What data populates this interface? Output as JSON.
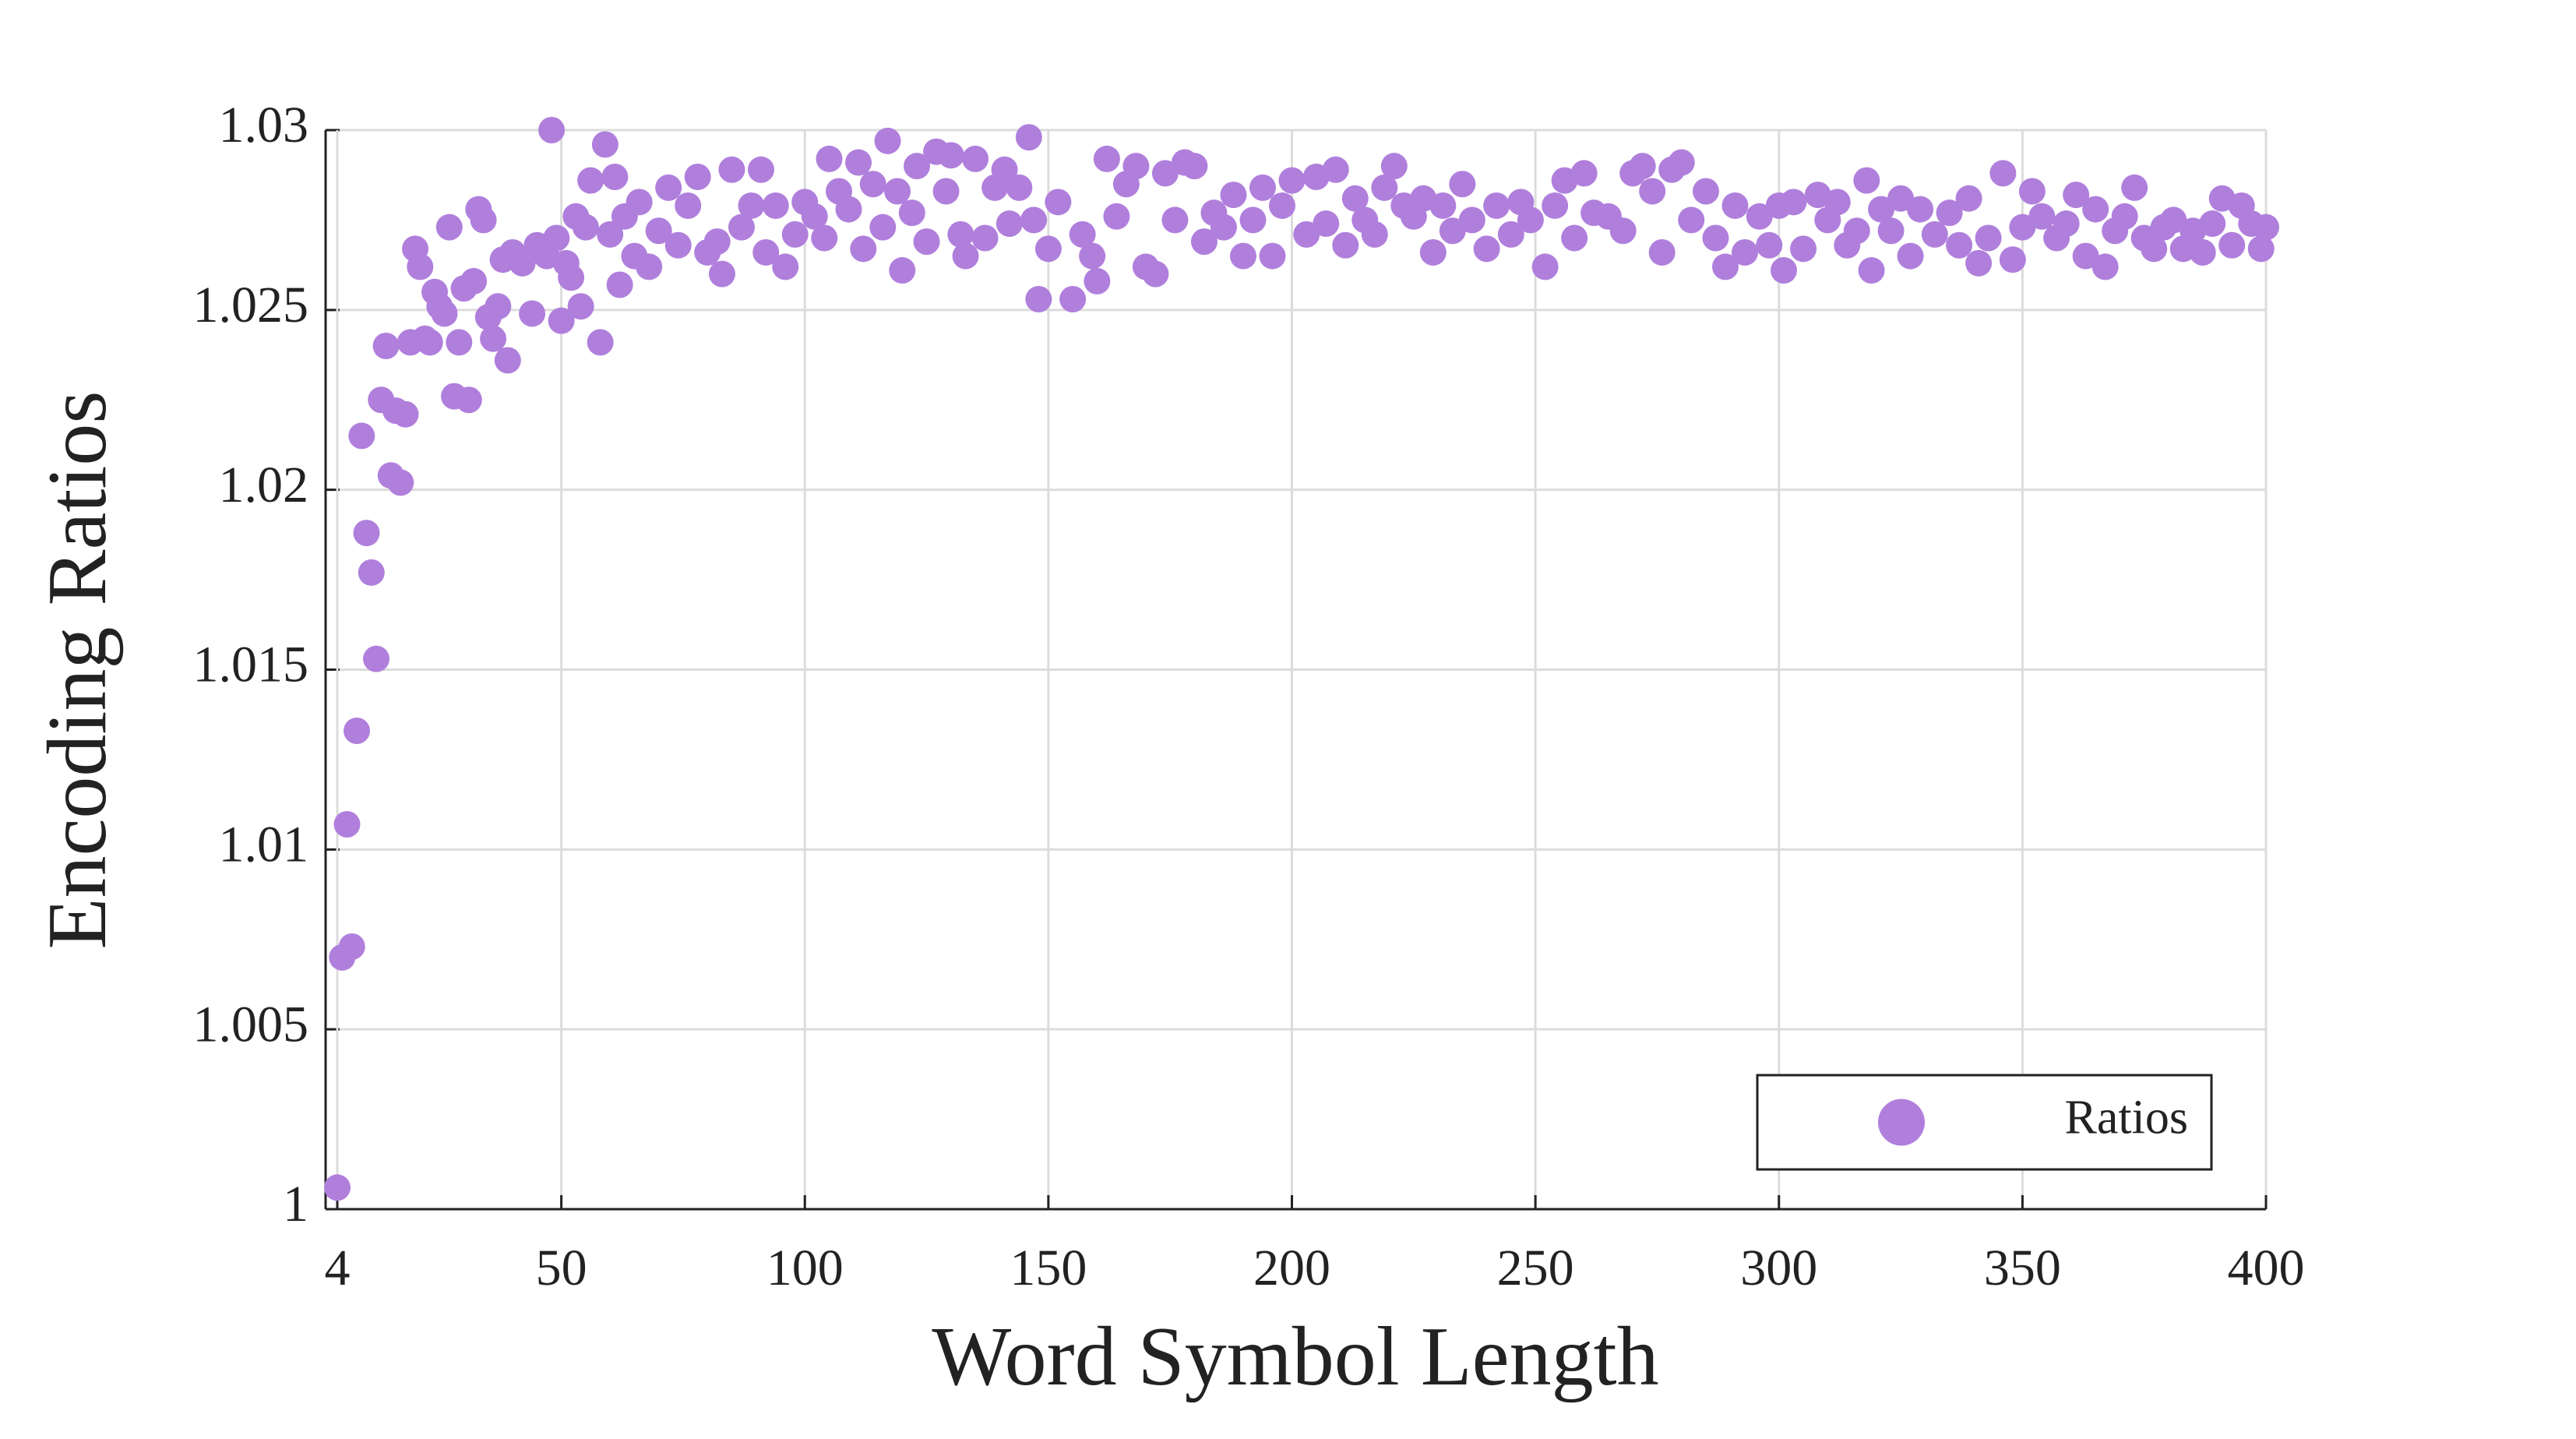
{
  "chart_data": {
    "type": "scatter",
    "x_label": "Word Symbol Length",
    "y_label": "Encoding Ratios",
    "xlim": [
      1.6,
      400
    ],
    "ylim": [
      1,
      1.03
    ],
    "xticks": [
      4,
      50,
      100,
      150,
      200,
      250,
      300,
      350,
      400
    ],
    "yticks": [
      1,
      1.005,
      1.01,
      1.015,
      1.02,
      1.025,
      1.03
    ],
    "grid": true,
    "legend": "lower right",
    "series": [
      {
        "name": "Ratios",
        "color": "#b07fdc",
        "x": [
          4,
          5,
          6,
          7,
          8,
          9,
          10,
          11,
          12,
          13,
          14,
          15,
          16,
          17,
          18,
          19,
          20,
          21,
          22,
          23,
          24,
          25,
          26,
          27,
          28,
          29,
          30,
          31,
          32,
          33,
          34,
          35,
          36,
          37,
          38,
          39,
          40,
          42,
          44,
          45,
          47,
          48,
          49,
          50,
          51,
          52,
          53,
          54,
          55,
          56,
          58,
          59,
          60,
          61,
          62,
          63,
          65,
          66,
          68,
          70,
          72,
          74,
          76,
          78,
          80,
          82,
          83,
          85,
          87,
          89,
          91,
          92,
          94,
          96,
          98,
          100,
          102,
          104,
          105,
          107,
          109,
          111,
          112,
          114,
          116,
          117,
          119,
          120,
          122,
          123,
          125,
          127,
          129,
          130,
          132,
          133,
          135,
          137,
          139,
          141,
          142,
          144,
          146,
          147,
          148,
          150,
          152,
          155,
          157,
          159,
          160,
          162,
          164,
          166,
          168,
          170,
          172,
          174,
          176,
          178,
          180,
          182,
          184,
          186,
          188,
          190,
          192,
          194,
          196,
          198,
          200,
          203,
          205,
          207,
          209,
          211,
          213,
          215,
          217,
          219,
          221,
          223,
          225,
          227,
          229,
          231,
          233,
          235,
          237,
          240,
          242,
          245,
          247,
          249,
          252,
          254,
          256,
          258,
          260,
          262,
          265,
          268,
          270,
          272,
          274,
          276,
          278,
          280,
          282,
          285,
          287,
          289,
          291,
          293,
          296,
          298,
          300,
          301,
          303,
          305,
          308,
          310,
          312,
          314,
          316,
          318,
          319,
          321,
          323,
          325,
          327,
          329,
          332,
          335,
          337,
          339,
          341,
          343,
          346,
          348,
          350,
          352,
          354,
          357,
          359,
          361,
          363,
          365,
          367,
          369,
          371,
          373,
          375,
          377,
          379,
          381,
          383,
          385,
          387,
          389,
          391,
          393,
          395,
          397,
          399,
          400
        ],
        "values": [
          1.0006,
          1.007,
          1.0107,
          1.0073,
          1.0133,
          1.0215,
          1.0188,
          1.0177,
          1.0153,
          1.0225,
          1.024,
          1.0204,
          1.0222,
          1.0202,
          1.0221,
          1.0241,
          1.0267,
          1.0262,
          1.0242,
          1.0241,
          1.0255,
          1.0251,
          1.0249,
          1.0273,
          1.0226,
          1.0241,
          1.0256,
          1.0225,
          1.0258,
          1.0278,
          1.0275,
          1.0248,
          1.0242,
          1.0251,
          1.0264,
          1.0236,
          1.0266,
          1.0263,
          1.0249,
          1.0268,
          1.0265,
          1.03,
          1.027,
          1.0247,
          1.0263,
          1.0259,
          1.0276,
          1.0251,
          1.0273,
          1.0286,
          1.0241,
          1.0296,
          1.0271,
          1.0287,
          1.0257,
          1.0276,
          1.0265,
          1.028,
          1.0262,
          1.0272,
          1.0284,
          1.0268,
          1.0279,
          1.0287,
          1.0266,
          1.0269,
          1.026,
          1.0289,
          1.0273,
          1.0279,
          1.0289,
          1.0266,
          1.0279,
          1.0262,
          1.0271,
          1.028,
          1.0276,
          1.027,
          1.0292,
          1.0283,
          1.0278,
          1.0291,
          1.0267,
          1.0285,
          1.0273,
          1.0297,
          1.0283,
          1.0261,
          1.0277,
          1.029,
          1.0269,
          1.0294,
          1.0283,
          1.0293,
          1.0271,
          1.0265,
          1.0292,
          1.027,
          1.0284,
          1.0289,
          1.0274,
          1.0284,
          1.0298,
          1.0275,
          1.0253,
          1.0267,
          1.028,
          1.0253,
          1.0271,
          1.0265,
          1.0258,
          1.0292,
          1.0276,
          1.0285,
          1.029,
          1.0262,
          1.026,
          1.0288,
          1.0275,
          1.0291,
          1.029,
          1.0269,
          1.0277,
          1.0273,
          1.0282,
          1.0265,
          1.0275,
          1.0284,
          1.0265,
          1.0279,
          1.0286,
          1.0271,
          1.0287,
          1.0274,
          1.0289,
          1.0268,
          1.0281,
          1.0275,
          1.0271,
          1.0284,
          1.029,
          1.0279,
          1.0276,
          1.0281,
          1.0266,
          1.0279,
          1.0272,
          1.0285,
          1.0275,
          1.0267,
          1.0279,
          1.0271,
          1.028,
          1.0275,
          1.0262,
          1.0279,
          1.0286,
          1.027,
          1.0288,
          1.0277,
          1.0276,
          1.0272,
          1.0288,
          1.029,
          1.0283,
          1.0266,
          1.0289,
          1.0291,
          1.0275,
          1.0283,
          1.027,
          1.0262,
          1.0279,
          1.0266,
          1.0276,
          1.0268,
          1.0279,
          1.0261,
          1.028,
          1.0267,
          1.0282,
          1.0275,
          1.028,
          1.0268,
          1.0272,
          1.0286,
          1.0261,
          1.0278,
          1.0272,
          1.0281,
          1.0265,
          1.0278,
          1.0271,
          1.0277,
          1.0268,
          1.0281,
          1.0263,
          1.027,
          1.0288,
          1.0264,
          1.0273,
          1.0283,
          1.0276,
          1.027,
          1.0274,
          1.0282,
          1.0265,
          1.0278,
          1.0262,
          1.0272,
          1.0276,
          1.0284,
          1.027,
          1.0267,
          1.0273,
          1.0275,
          1.0267,
          1.0272,
          1.0266,
          1.0274,
          1.0281,
          1.0268,
          1.0279,
          1.0274,
          1.0267,
          1.0273
        ]
      }
    ]
  }
}
